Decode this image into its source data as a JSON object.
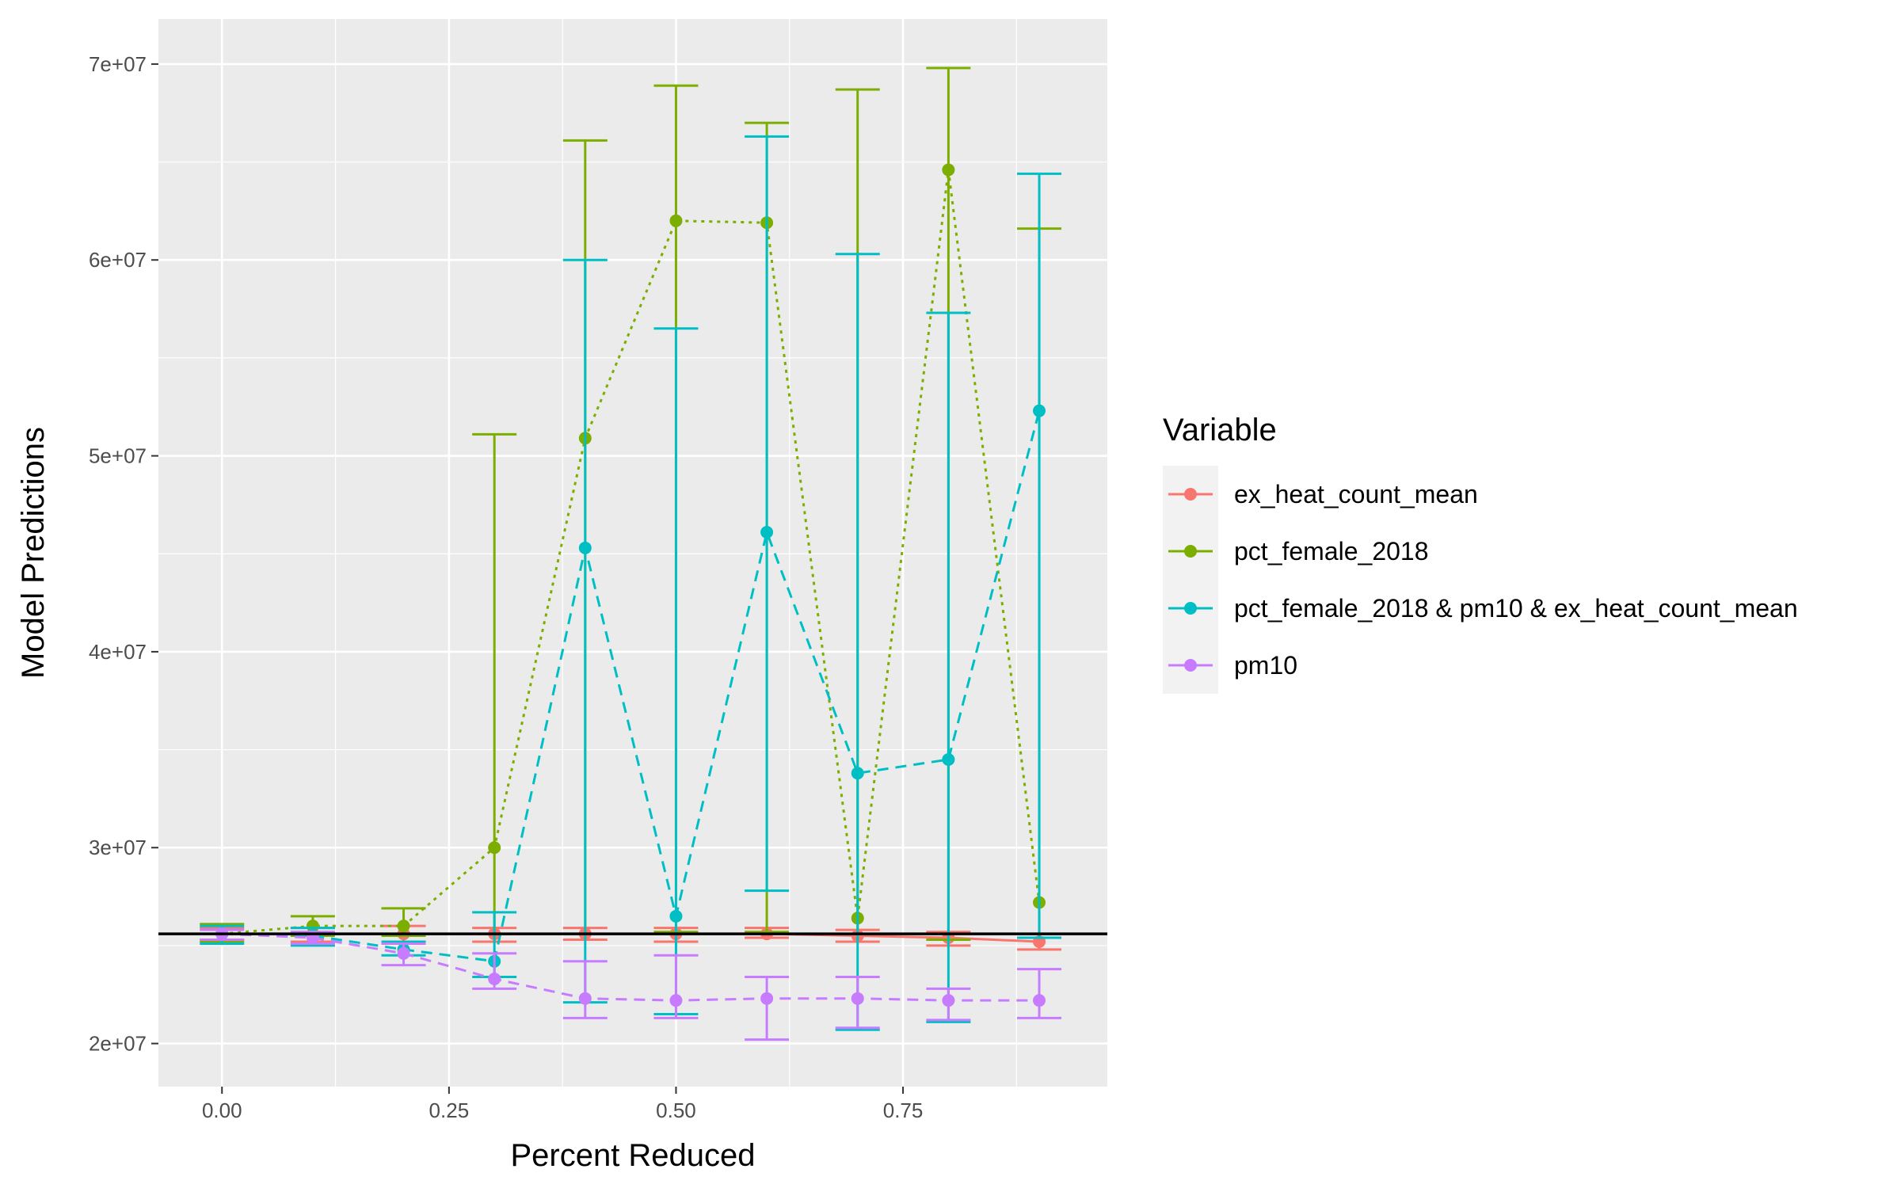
{
  "chart_data": {
    "type": "line",
    "xlabel": "Percent Reduced",
    "ylabel": "Model Predictions",
    "xlim": [
      -0.07,
      0.975
    ],
    "ylim": [
      17800000,
      72300000
    ],
    "x_ticks": [
      {
        "value": 0,
        "label": "0.00"
      },
      {
        "value": 0.25,
        "label": "0.25"
      },
      {
        "value": 0.5,
        "label": "0.50"
      },
      {
        "value": 0.75,
        "label": "0.75"
      }
    ],
    "y_ticks": [
      {
        "value": 20000000,
        "label": "2e+07"
      },
      {
        "value": 30000000,
        "label": "3e+07"
      },
      {
        "value": 40000000,
        "label": "4e+07"
      },
      {
        "value": 50000000,
        "label": "5e+07"
      },
      {
        "value": 60000000,
        "label": "6e+07"
      },
      {
        "value": 70000000,
        "label": "7e+07"
      }
    ],
    "grid": true,
    "reference_line": {
      "y": 25600000,
      "color": "#000000"
    },
    "legend": {
      "title": "Variable",
      "placement": "right"
    },
    "series": [
      {
        "name": "ex_heat_count_mean",
        "color": "#F8766D",
        "linetype": "solid",
        "x": [
          0,
          0.1,
          0.2,
          0.3,
          0.4,
          0.5,
          0.6,
          0.7,
          0.8,
          0.9
        ],
        "y": [
          25600000,
          25600000,
          25600000,
          25600000,
          25600000,
          25600000,
          25600000,
          25500000,
          25400000,
          25200000
        ],
        "ymin": [
          25300000,
          25200000,
          25100000,
          25200000,
          25300000,
          25200000,
          25400000,
          25200000,
          25000000,
          24800000
        ],
        "ymax": [
          25900000,
          25900000,
          26000000,
          25900000,
          25900000,
          25900000,
          25900000,
          25800000,
          25700000,
          25600000
        ]
      },
      {
        "name": "pct_female_2018",
        "color": "#7CAE00",
        "linetype": "dotted",
        "x": [
          0,
          0.1,
          0.2,
          0.3,
          0.4,
          0.5,
          0.6,
          0.7,
          0.8,
          0.9
        ],
        "y": [
          25600000,
          26000000,
          26000000,
          30000000,
          50900000,
          62000000,
          61900000,
          26400000,
          64600000,
          27200000
        ],
        "ymin": [
          25200000,
          25500000,
          25500000,
          25600000,
          25600000,
          25700000,
          25700000,
          25600000,
          25300000,
          25600000
        ],
        "ymax": [
          26100000,
          26500000,
          26900000,
          51100000,
          66100000,
          68900000,
          67000000,
          68700000,
          69800000,
          61600000
        ]
      },
      {
        "name": "pct_female_2018 & pm10 & ex_heat_count_mean",
        "color": "#00BFC4",
        "linetype": "dashed",
        "x": [
          0,
          0.1,
          0.2,
          0.3,
          0.4,
          0.5,
          0.6,
          0.7,
          0.8,
          0.9
        ],
        "y": [
          25600000,
          25500000,
          24800000,
          24200000,
          45300000,
          26500000,
          46100000,
          33800000,
          34500000,
          52300000
        ],
        "ymin": [
          25100000,
          25000000,
          24500000,
          23400000,
          22100000,
          21500000,
          27800000,
          20700000,
          21100000,
          25400000
        ],
        "ymax": [
          26000000,
          25900000,
          25200000,
          26700000,
          60000000,
          56500000,
          66300000,
          60300000,
          57300000,
          64400000
        ]
      },
      {
        "name": "pm10",
        "color": "#C77CFF",
        "linetype": "dashed",
        "x": [
          0,
          0.1,
          0.2,
          0.3,
          0.4,
          0.5,
          0.6,
          0.7,
          0.8,
          0.9
        ],
        "y": [
          25600000,
          25400000,
          24600000,
          23300000,
          22300000,
          22200000,
          22300000,
          22300000,
          22200000,
          22200000
        ],
        "ymin": [
          25300000,
          25100000,
          24000000,
          22800000,
          21300000,
          21300000,
          20200000,
          20800000,
          21200000,
          21300000
        ],
        "ymax": [
          25800000,
          25700000,
          25100000,
          24600000,
          24200000,
          24500000,
          23400000,
          23400000,
          22800000,
          23800000
        ]
      }
    ]
  }
}
